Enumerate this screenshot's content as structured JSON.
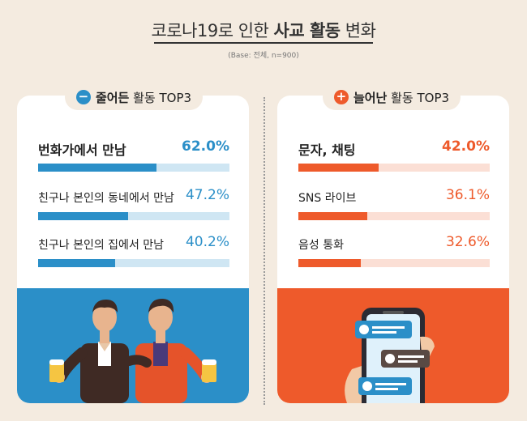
{
  "header": {
    "title_normal": "코로나19로 인한 ",
    "title_bold": "사교 활동",
    "title_tail": " 변화",
    "base": "(Base: 전체, n=900)"
  },
  "colors": {
    "decrease": "#2b8fc8",
    "decrease_track": "#cfe6f3",
    "increase": "#ee5a2b",
    "increase_track": "#fbdfd5",
    "background": "#f4ebe0"
  },
  "chart_data": [
    {
      "type": "bar",
      "title": "줄어든 활동 TOP3",
      "title_bold": "줄어든",
      "title_rest": " 활동 TOP3",
      "icon": "minus-circle-icon",
      "categories": [
        "번화가에서 만남",
        "친구나 본인의 동네에서 만남",
        "친구나 본인의 집에서 만남"
      ],
      "values": [
        62.0,
        47.2,
        40.2
      ],
      "value_labels": [
        "62.0%",
        "47.2%",
        "40.2%"
      ],
      "unit": "%",
      "xlim": [
        0,
        100
      ]
    },
    {
      "type": "bar",
      "title": "늘어난 활동 TOP3",
      "title_bold": "늘어난",
      "title_rest": " 활동 TOP3",
      "icon": "plus-circle-icon",
      "categories": [
        "문자, 채팅",
        "SNS 라이브",
        "음성 통화"
      ],
      "values": [
        42.0,
        36.1,
        32.6
      ],
      "value_labels": [
        "42.0%",
        "36.1%",
        "32.6%"
      ],
      "unit": "%",
      "xlim": [
        0,
        100
      ]
    }
  ]
}
